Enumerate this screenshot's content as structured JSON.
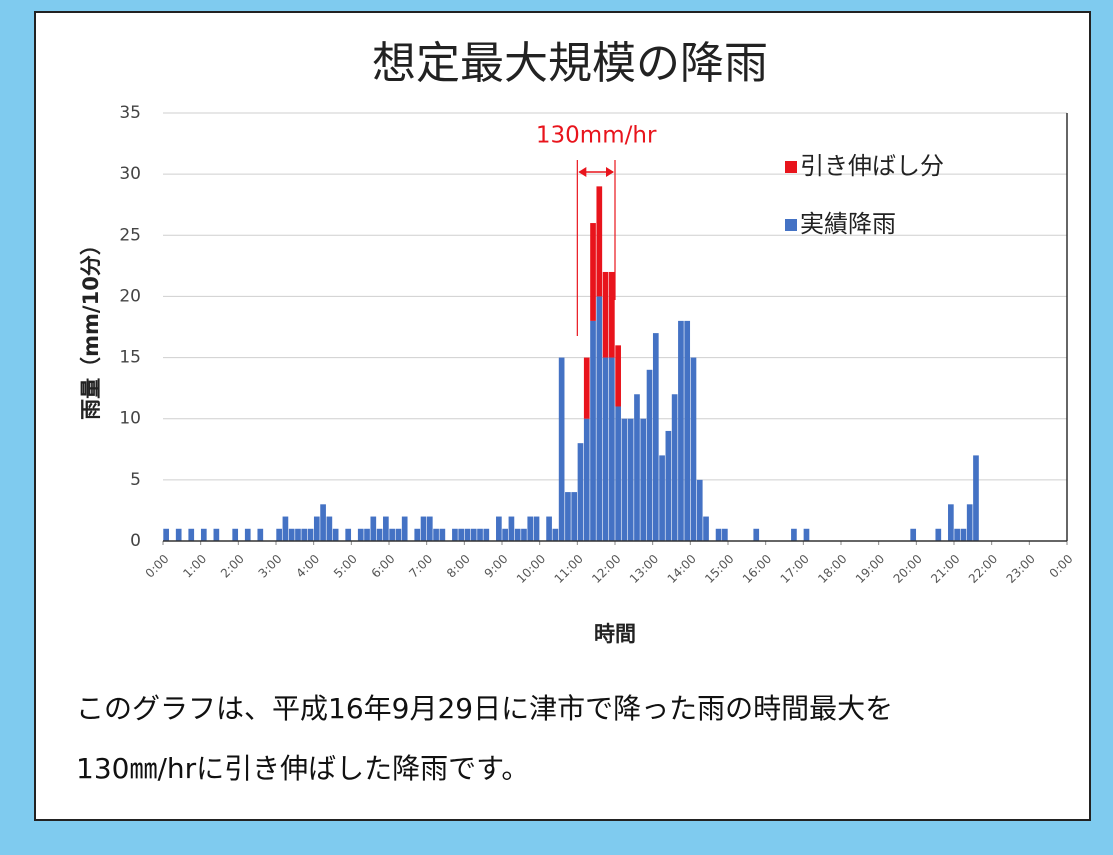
{
  "chart_data": {
    "type": "stacked_bar",
    "title": "想定最大規模の降雨",
    "ylabel": "雨量（mm/10分）",
    "xlabel": "時間",
    "annotation": "130mm/hr",
    "x": [
      0,
      10,
      20,
      30,
      40,
      50,
      60,
      70,
      80,
      90,
      100,
      110,
      120,
      130,
      140,
      150,
      160,
      170,
      180,
      190,
      200,
      210,
      220,
      230,
      240,
      250,
      260,
      270,
      280,
      290,
      300,
      310,
      320,
      330,
      340,
      350,
      360,
      370,
      380,
      390,
      400,
      410,
      420,
      430,
      440,
      450,
      460,
      470,
      480,
      490,
      500,
      510,
      520,
      530,
      540,
      550,
      560,
      570,
      580,
      590,
      600,
      610,
      620,
      630,
      640,
      650,
      660,
      670,
      680,
      690,
      700,
      710,
      720,
      730,
      740,
      750,
      760,
      770,
      780,
      790,
      800,
      810,
      820,
      830,
      840,
      850,
      860,
      870,
      880,
      890,
      900,
      910,
      920,
      930,
      940,
      950,
      960,
      970,
      980,
      990,
      1000,
      1010,
      1020,
      1030,
      1040,
      1050,
      1060,
      1070,
      1080,
      1090,
      1100,
      1110,
      1120,
      1130,
      1140,
      1150,
      1160,
      1170,
      1180,
      1190,
      1200,
      1210,
      1220,
      1230,
      1240,
      1250,
      1260,
      1270,
      1280,
      1290,
      1300,
      1310,
      1320,
      1330,
      1340,
      1350,
      1360,
      1370,
      1380,
      1390,
      1400,
      1410,
      1420,
      1430
    ],
    "series": [
      {
        "name": "実績降雨",
        "color": "#4472c4",
        "values": [
          1,
          0,
          1,
          0,
          1,
          0,
          1,
          0,
          1,
          0,
          0,
          1,
          0,
          1,
          0,
          1,
          0,
          0,
          1,
          2,
          1,
          1,
          1,
          1,
          2,
          3,
          2,
          1,
          0,
          1,
          0,
          1,
          1,
          2,
          1,
          2,
          1,
          1,
          2,
          0,
          1,
          2,
          2,
          1,
          1,
          0,
          1,
          1,
          1,
          1,
          1,
          1,
          0,
          2,
          1,
          2,
          1,
          1,
          2,
          2,
          0,
          2,
          1,
          15,
          4,
          4,
          8,
          10,
          18,
          20,
          15,
          15,
          11,
          10,
          10,
          12,
          10,
          14,
          17,
          7,
          9,
          12,
          18,
          18,
          15,
          5,
          2,
          0,
          1,
          1,
          0,
          0,
          0,
          0,
          1,
          0,
          0,
          0,
          0,
          0,
          1,
          0,
          1,
          0,
          0,
          0,
          0,
          0,
          0,
          0,
          0,
          0,
          0,
          0,
          0,
          0,
          0,
          0,
          0,
          1,
          0,
          0,
          0,
          1,
          0,
          3,
          1,
          1,
          3,
          7,
          0,
          0,
          0,
          0,
          0,
          0,
          0,
          0,
          0,
          0,
          0,
          0,
          0,
          0
        ]
      },
      {
        "name": "引き伸ばし分",
        "color": "#e8141c",
        "values": [
          0,
          0,
          0,
          0,
          0,
          0,
          0,
          0,
          0,
          0,
          0,
          0,
          0,
          0,
          0,
          0,
          0,
          0,
          0,
          0,
          0,
          0,
          0,
          0,
          0,
          0,
          0,
          0,
          0,
          0,
          0,
          0,
          0,
          0,
          0,
          0,
          0,
          0,
          0,
          0,
          0,
          0,
          0,
          0,
          0,
          0,
          0,
          0,
          0,
          0,
          0,
          0,
          0,
          0,
          0,
          0,
          0,
          0,
          0,
          0,
          0,
          0,
          0,
          0,
          0,
          0,
          0,
          5,
          8,
          9,
          7,
          7,
          5,
          0,
          0,
          0,
          0,
          0,
          0,
          0,
          0,
          0,
          0,
          0,
          0,
          0,
          0,
          0,
          0,
          0,
          0,
          0,
          0,
          0,
          0,
          0,
          0,
          0,
          0,
          0,
          0,
          0,
          0,
          0,
          0,
          0,
          0,
          0,
          0,
          0,
          0,
          0,
          0,
          0,
          0,
          0,
          0,
          0,
          0,
          0,
          0,
          0,
          0,
          0,
          0,
          0,
          0,
          0,
          0,
          0,
          0,
          0,
          0,
          0,
          0,
          0,
          0,
          0,
          0,
          0,
          0,
          0,
          0,
          0
        ]
      }
    ],
    "bin_width": 10,
    "xlim": [
      0,
      1440
    ],
    "xticks": [
      {
        "value": 0,
        "label": "0:00"
      },
      {
        "value": 60,
        "label": "1:00"
      },
      {
        "value": 120,
        "label": "2:00"
      },
      {
        "value": 180,
        "label": "3:00"
      },
      {
        "value": 240,
        "label": "4:00"
      },
      {
        "value": 300,
        "label": "5:00"
      },
      {
        "value": 360,
        "label": "6:00"
      },
      {
        "value": 420,
        "label": "7:00"
      },
      {
        "value": 480,
        "label": "8:00"
      },
      {
        "value": 540,
        "label": "9:00"
      },
      {
        "value": 600,
        "label": "10:00"
      },
      {
        "value": 660,
        "label": "11:00"
      },
      {
        "value": 720,
        "label": "12:00"
      },
      {
        "value": 780,
        "label": "13:00"
      },
      {
        "value": 840,
        "label": "14:00"
      },
      {
        "value": 900,
        "label": "15:00"
      },
      {
        "value": 960,
        "label": "16:00"
      },
      {
        "value": 1020,
        "label": "17:00"
      },
      {
        "value": 1080,
        "label": "18:00"
      },
      {
        "value": 1140,
        "label": "19:00"
      },
      {
        "value": 1200,
        "label": "20:00"
      },
      {
        "value": 1260,
        "label": "21:00"
      },
      {
        "value": 1320,
        "label": "22:00"
      },
      {
        "value": 1380,
        "label": "23:00"
      },
      {
        "value": 1440,
        "label": "0:00"
      }
    ],
    "ylim": [
      0,
      35
    ],
    "yticks": [
      0,
      5,
      10,
      15,
      20,
      25,
      30,
      35
    ],
    "grid": true,
    "legend": "upper right"
  },
  "caption": [
    "このグラフは、平成16年9月29日に津市で降った雨の時間最大を",
    "130㎜/hrに引き伸ばした降雨です。"
  ]
}
